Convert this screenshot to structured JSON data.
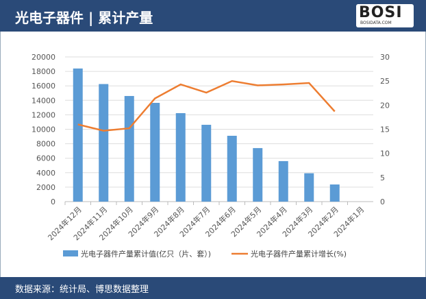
{
  "header": {
    "title": "光电子器件 | 累计产量",
    "logo_text": "BOSI",
    "logo_sub": "BOSIDATA.COM"
  },
  "footer": {
    "source": "数据来源：统计局、博思数据整理"
  },
  "colors": {
    "bar": "#5b9bd5",
    "line": "#ed7d31",
    "header": "#2a4a78"
  },
  "chart_data": {
    "type": "bar+line",
    "categories": [
      "2024年12月",
      "2024年11月",
      "2024年10月",
      "2024年9月",
      "2024年8月",
      "2024年7月",
      "2024年6月",
      "2024年5月",
      "2024年4月",
      "2024年3月",
      "2024年2月",
      "2024年1月"
    ],
    "series": [
      {
        "name": "光电子器件产量累计值(亿只（片、套）)",
        "type": "bar",
        "axis": "left",
        "values": [
          18400,
          16250,
          14600,
          13650,
          12230,
          10620,
          9100,
          7400,
          5600,
          3920,
          2370,
          null
        ]
      },
      {
        "name": "光电子器件产量累计增长(%)",
        "type": "line",
        "axis": "right",
        "values": [
          16.0,
          14.7,
          15.2,
          21.4,
          24.3,
          22.6,
          25.0,
          24.1,
          24.3,
          24.6,
          18.7,
          null
        ]
      }
    ],
    "ylim_left": [
      0,
      20000
    ],
    "yticks_left": [
      0,
      2000,
      4000,
      6000,
      8000,
      10000,
      12000,
      14000,
      16000,
      18000,
      20000
    ],
    "ylim_right": [
      0,
      30
    ],
    "yticks_right": [
      0,
      5,
      10,
      15,
      20,
      25,
      30
    ],
    "grid": true,
    "legend": "bottom"
  }
}
